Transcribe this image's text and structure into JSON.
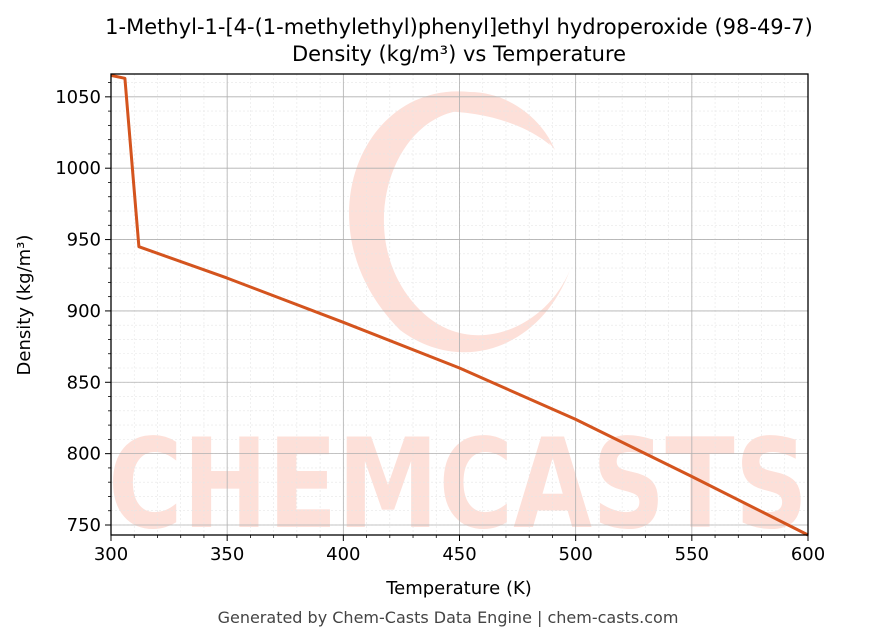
{
  "chart_data": {
    "type": "line",
    "title": "1-Methyl-1-[4-(1-methylethyl)phenyl]ethyl hydroperoxide (98-49-7)",
    "subtitle": "Density (kg/m³) vs Temperature",
    "xlabel": "Temperature (K)",
    "ylabel": "Density (kg/m³)",
    "xlim": [
      300,
      600
    ],
    "ylim": [
      743,
      1066
    ],
    "xticks": [
      300,
      350,
      400,
      450,
      500,
      550,
      600
    ],
    "yticks": [
      750,
      800,
      850,
      900,
      950,
      1000,
      1050
    ],
    "grid": true,
    "series": [
      {
        "color": "#d4541e",
        "x": [
          300,
          306,
          312,
          350,
          400,
          450,
          500,
          550,
          600
        ],
        "y": [
          1065,
          1063,
          945,
          923,
          892,
          860,
          824,
          784,
          743
        ]
      }
    ]
  },
  "watermark": {
    "text": "CHEMCASTS",
    "color": "#fde0d9"
  },
  "footer": "Generated by Chem-Casts Data Engine | chem-casts.com"
}
